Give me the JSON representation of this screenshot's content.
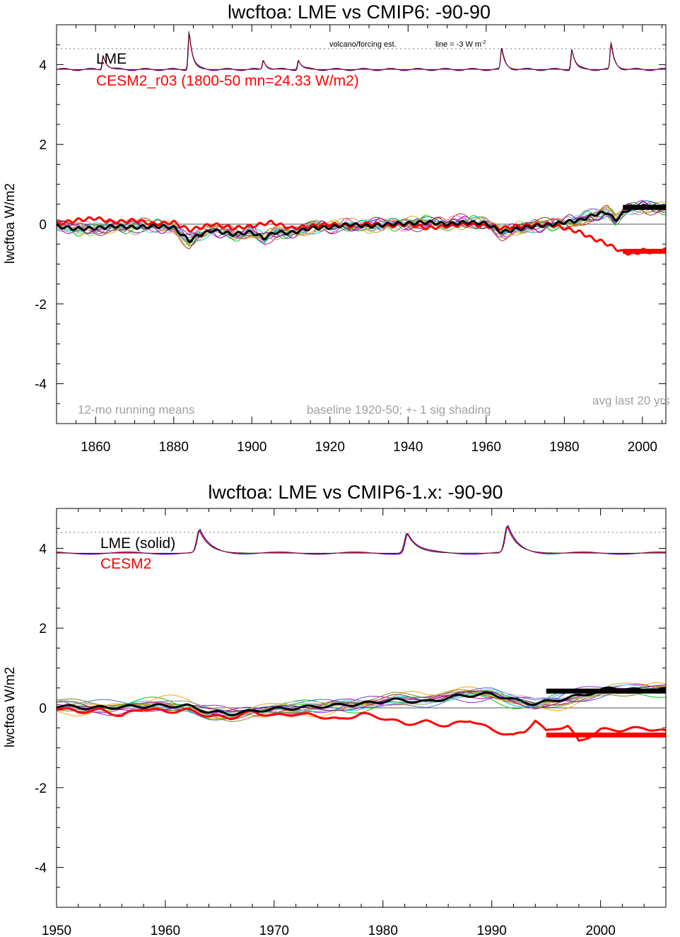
{
  "chart_data": [
    {
      "type": "line",
      "title": "lwcftoa: LME vs CMIP6: -90-90",
      "ylabel": "lwcftoa W/m2",
      "xlim": [
        1850,
        2006
      ],
      "ylim": [
        -5,
        5
      ],
      "x_ticks": [
        1860,
        1880,
        1900,
        1920,
        1940,
        1960,
        1980,
        2000
      ],
      "y_ticks": [
        -4,
        -2,
        0,
        2,
        4
      ],
      "dotted_line_y": 4.4,
      "labels": {
        "legend_black": "LME",
        "legend_red": "CESM2_r03 (1800-50 mn=24.33 W/m2)",
        "volcano_note": "volcano/forcing est.",
        "line_note": "line = -3 W m",
        "line_note_sup": "-2",
        "running_mean": "12-mo running means",
        "baseline": "baseline 1920-50; +- 1 sig shading",
        "avg_last": "avg last 20 yrs"
      },
      "forcing_peaks": [
        {
          "x": 1884,
          "y": 4.85
        },
        {
          "x": 1862,
          "y": 4.25
        },
        {
          "x": 1903,
          "y": 4.12
        },
        {
          "x": 1912,
          "y": 4.12
        },
        {
          "x": 1964,
          "y": 4.42
        },
        {
          "x": 1982,
          "y": 4.4
        },
        {
          "x": 1992,
          "y": 4.55
        }
      ],
      "series": [
        {
          "role": "ensemble_mean",
          "color": "#000000",
          "x": [
            1850,
            1855,
            1860,
            1865,
            1870,
            1875,
            1880,
            1884,
            1886,
            1890,
            1895,
            1900,
            1903,
            1906,
            1910,
            1915,
            1920,
            1925,
            1930,
            1935,
            1940,
            1945,
            1950,
            1955,
            1960,
            1964,
            1968,
            1972,
            1976,
            1980,
            1984,
            1988,
            1991,
            1993,
            1996,
            2000,
            2005
          ],
          "values": [
            -0.05,
            -0.12,
            -0.1,
            -0.05,
            -0.08,
            -0.05,
            -0.08,
            -0.42,
            -0.3,
            -0.15,
            -0.25,
            -0.2,
            -0.35,
            -0.2,
            -0.22,
            -0.1,
            -0.08,
            0.0,
            -0.05,
            0.0,
            0.02,
            0.05,
            0.0,
            0.05,
            0.02,
            -0.2,
            -0.12,
            -0.05,
            -0.02,
            0.05,
            0.1,
            0.25,
            0.3,
            0.1,
            0.35,
            0.45,
            0.42
          ]
        },
        {
          "role": "cesm2",
          "color": "#ff0000",
          "x": [
            1850,
            1855,
            1860,
            1865,
            1870,
            1875,
            1880,
            1884,
            1886,
            1890,
            1895,
            1900,
            1905,
            1910,
            1915,
            1920,
            1925,
            1930,
            1935,
            1940,
            1945,
            1950,
            1955,
            1960,
            1964,
            1968,
            1972,
            1976,
            1980,
            1984,
            1987,
            1990,
            1993,
            1995,
            1998,
            2000,
            2003,
            2005
          ],
          "values": [
            0.0,
            0.1,
            0.15,
            0.05,
            0.1,
            0.0,
            0.05,
            -0.15,
            -0.1,
            0.0,
            -0.1,
            -0.05,
            0.05,
            -0.1,
            -0.05,
            0.0,
            -0.05,
            0.02,
            -0.05,
            0.0,
            -0.1,
            -0.05,
            0.0,
            -0.05,
            -0.1,
            -0.05,
            -0.02,
            0.0,
            -0.1,
            -0.2,
            -0.35,
            -0.45,
            -0.6,
            -0.7,
            -0.75,
            -0.65,
            -0.72,
            -0.65
          ]
        }
      ],
      "ensemble_spread": 0.18,
      "avg_bars": [
        {
          "color": "#000000",
          "x0": 1995,
          "x1": 2006,
          "y": 0.42
        },
        {
          "color": "#ff0000",
          "x0": 1995,
          "x1": 2006,
          "y": -0.68
        }
      ]
    },
    {
      "type": "line",
      "title": "lwcftoa: LME vs CMIP6-1.x: -90-90",
      "ylabel": "lwcftoa W/m2",
      "xlim": [
        1950,
        2006
      ],
      "ylim": [
        -5,
        5
      ],
      "x_ticks": [
        1950,
        1960,
        1970,
        1980,
        1990,
        2000
      ],
      "y_ticks": [
        -4,
        -2,
        0,
        2,
        4
      ],
      "dotted_line_y": 4.4,
      "labels": {
        "legend_black": "LME (solid)",
        "legend_red": "CESM2"
      },
      "forcing_peaks": [
        {
          "x": 1963.2,
          "y": 4.45
        },
        {
          "x": 1982.3,
          "y": 4.38
        },
        {
          "x": 1991.5,
          "y": 4.55
        }
      ],
      "series": [
        {
          "role": "ensemble_mean",
          "color": "#000000",
          "x": [
            1950,
            1953,
            1956,
            1959,
            1962,
            1964,
            1966,
            1969,
            1972,
            1975,
            1978,
            1981,
            1984,
            1987,
            1990,
            1992,
            1994,
            1996,
            1998,
            2001,
            2003,
            2005
          ],
          "values": [
            0.05,
            0.0,
            0.02,
            0.05,
            0.05,
            -0.1,
            -0.15,
            -0.05,
            0.0,
            0.05,
            0.1,
            0.2,
            0.15,
            0.3,
            0.35,
            0.2,
            0.1,
            0.2,
            0.3,
            0.5,
            0.45,
            0.45
          ]
        },
        {
          "role": "cesm2",
          "color": "#ff0000",
          "x": [
            1950,
            1952,
            1954,
            1956,
            1958,
            1960,
            1962,
            1964,
            1966,
            1968,
            1970,
            1972,
            1974,
            1976,
            1978,
            1980,
            1982,
            1984,
            1986,
            1988,
            1990,
            1992,
            1993,
            1994,
            1995,
            1996,
            1997,
            1998,
            2000,
            2002,
            2004,
            2006
          ],
          "values": [
            0.0,
            -0.1,
            -0.05,
            -0.2,
            0.0,
            -0.1,
            -0.05,
            -0.2,
            -0.25,
            -0.1,
            -0.2,
            -0.15,
            -0.2,
            -0.3,
            -0.15,
            -0.25,
            -0.4,
            -0.35,
            -0.45,
            -0.3,
            -0.55,
            -0.7,
            -0.6,
            -0.3,
            -0.6,
            -0.5,
            -0.45,
            -0.85,
            -0.55,
            -0.55,
            -0.5,
            -0.6
          ]
        }
      ],
      "ensemble_spread": 0.2,
      "avg_bars": [
        {
          "color": "#000000",
          "x0": 1995,
          "x1": 2006,
          "y": 0.42
        },
        {
          "color": "#ff0000",
          "x0": 1995,
          "x1": 2006,
          "y": -0.68
        }
      ]
    }
  ],
  "ensemble_colors": [
    "#8a2be2",
    "#00cc00",
    "#00bfff",
    "#ffa500",
    "#cc00cc",
    "#008080",
    "#a52a2a",
    "#9acd32",
    "#4169e1",
    "#808080",
    "#ff69b4",
    "#6b8e23",
    "#bbbbbb",
    "#40e0d0",
    "#daa520",
    "#800080"
  ]
}
